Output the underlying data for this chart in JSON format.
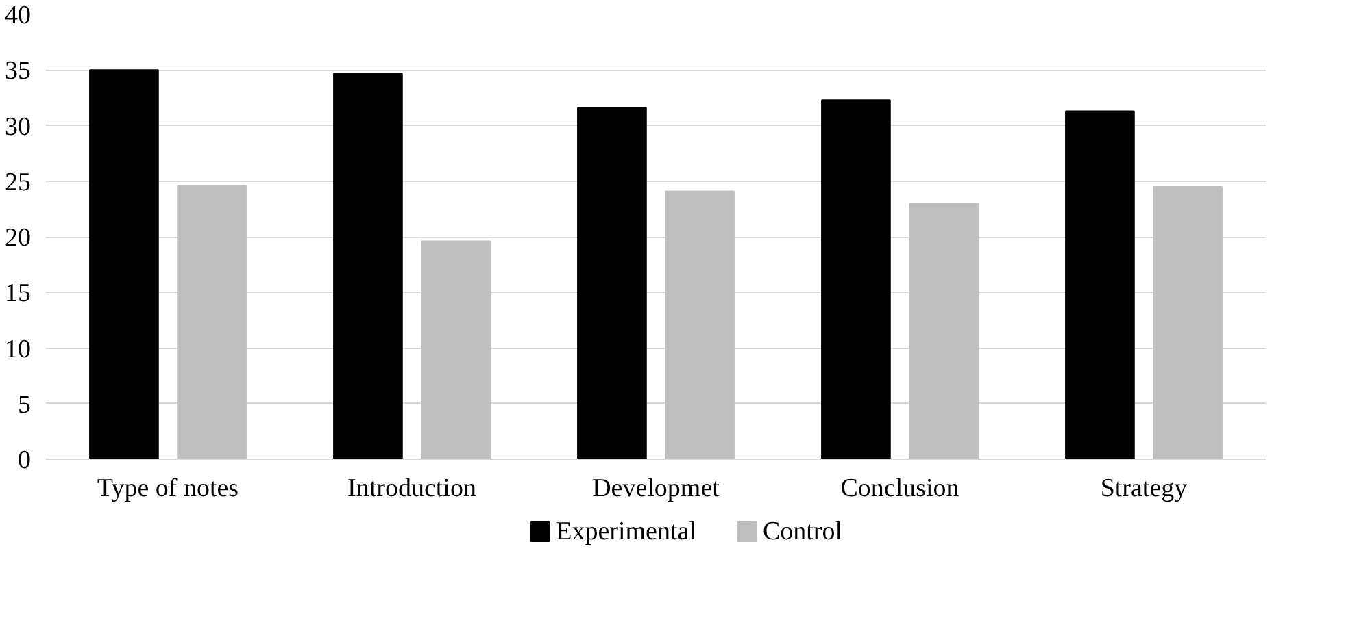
{
  "chart_data": {
    "type": "bar",
    "categories": [
      "Type of notes",
      "Introduction",
      "Developmet",
      "Conclusion",
      "Strategy"
    ],
    "series": [
      {
        "name": "Experimental",
        "color": "#000000",
        "values": [
          35.0,
          34.7,
          31.6,
          32.3,
          31.3
        ]
      },
      {
        "name": "Control",
        "color": "#bfbfbf",
        "values": [
          24.6,
          19.6,
          24.1,
          23.0,
          24.5
        ]
      }
    ],
    "ylim": [
      0,
      40
    ],
    "yticks": [
      0,
      5,
      10,
      15,
      20,
      25,
      30,
      35,
      40
    ],
    "grid": "y",
    "legend": "bottom"
  }
}
